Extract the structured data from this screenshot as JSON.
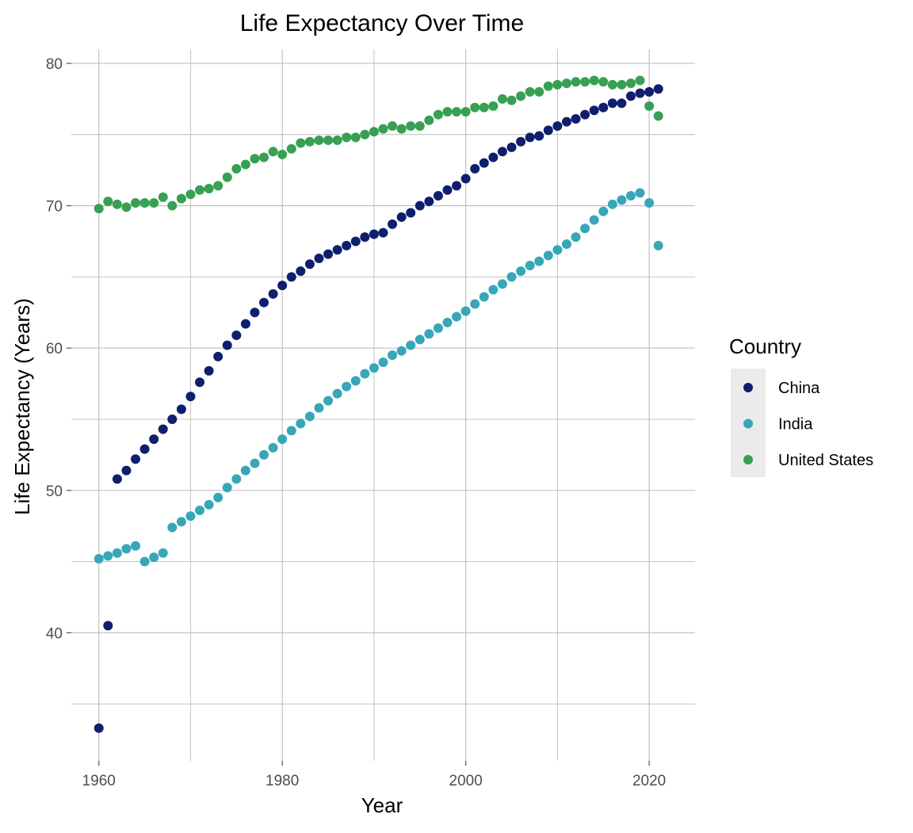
{
  "chart_data": {
    "type": "scatter",
    "title": "Life Expectancy Over Time",
    "xlabel": "Year",
    "ylabel": "Life Expectancy (Years)",
    "xlim": [
      1957,
      2025
    ],
    "ylim": [
      31,
      81
    ],
    "x_ticks": [
      1960,
      1980,
      2000,
      2020
    ],
    "x_minor_ticks": [
      1970,
      1990,
      2010
    ],
    "y_ticks": [
      40,
      50,
      60,
      70,
      80
    ],
    "y_minor_ticks": [
      35,
      45,
      55,
      65,
      75
    ],
    "grid": true,
    "legend": {
      "title": "Country",
      "placement": "right"
    },
    "years": [
      1960,
      1961,
      1962,
      1963,
      1964,
      1965,
      1966,
      1967,
      1968,
      1969,
      1970,
      1971,
      1972,
      1973,
      1974,
      1975,
      1976,
      1977,
      1978,
      1979,
      1980,
      1981,
      1982,
      1983,
      1984,
      1985,
      1986,
      1987,
      1988,
      1989,
      1990,
      1991,
      1992,
      1993,
      1994,
      1995,
      1996,
      1997,
      1998,
      1999,
      2000,
      2001,
      2002,
      2003,
      2004,
      2005,
      2006,
      2007,
      2008,
      2009,
      2010,
      2011,
      2012,
      2013,
      2014,
      2015,
      2016,
      2017,
      2018,
      2019,
      2020,
      2021
    ],
    "series": [
      {
        "name": "China",
        "color": "#0f1f6e",
        "values": [
          33.3,
          40.5,
          50.8,
          51.4,
          52.2,
          52.9,
          53.6,
          54.3,
          55.0,
          55.7,
          56.6,
          57.6,
          58.4,
          59.4,
          60.2,
          60.9,
          61.7,
          62.5,
          63.2,
          63.8,
          64.4,
          65.0,
          65.4,
          65.9,
          66.3,
          66.6,
          66.9,
          67.2,
          67.5,
          67.8,
          68.0,
          68.1,
          68.7,
          69.2,
          69.5,
          70.0,
          70.3,
          70.7,
          71.1,
          71.4,
          71.9,
          72.6,
          73.0,
          73.4,
          73.8,
          74.1,
          74.5,
          74.8,
          74.9,
          75.3,
          75.6,
          75.9,
          76.1,
          76.4,
          76.7,
          76.9,
          77.2,
          77.2,
          77.7,
          77.9,
          78.0,
          78.2
        ]
      },
      {
        "name": "India",
        "color": "#36a7b8",
        "values": [
          45.2,
          45.4,
          45.6,
          45.9,
          46.1,
          45.0,
          45.3,
          45.6,
          47.4,
          47.8,
          48.2,
          48.6,
          49.0,
          49.5,
          50.2,
          50.8,
          51.4,
          51.9,
          52.5,
          53.0,
          53.6,
          54.2,
          54.7,
          55.2,
          55.8,
          56.3,
          56.8,
          57.3,
          57.7,
          58.2,
          58.6,
          59.0,
          59.5,
          59.8,
          60.2,
          60.6,
          61.0,
          61.4,
          61.8,
          62.2,
          62.6,
          63.1,
          63.6,
          64.1,
          64.5,
          65.0,
          65.4,
          65.8,
          66.1,
          66.5,
          66.9,
          67.3,
          67.8,
          68.4,
          69.0,
          69.6,
          70.1,
          70.4,
          70.7,
          70.9,
          70.2,
          67.2
        ]
      },
      {
        "name": "United States",
        "color": "#37a052",
        "values": [
          69.8,
          70.3,
          70.1,
          69.9,
          70.2,
          70.2,
          70.2,
          70.6,
          70.0,
          70.5,
          70.8,
          71.1,
          71.2,
          71.4,
          72.0,
          72.6,
          72.9,
          73.3,
          73.4,
          73.8,
          73.6,
          74.0,
          74.4,
          74.5,
          74.6,
          74.6,
          74.6,
          74.8,
          74.8,
          75.0,
          75.2,
          75.4,
          75.6,
          75.4,
          75.6,
          75.6,
          76.0,
          76.4,
          76.6,
          76.6,
          76.6,
          76.9,
          76.9,
          77.0,
          77.5,
          77.4,
          77.7,
          78.0,
          78.0,
          78.4,
          78.5,
          78.6,
          78.7,
          78.7,
          78.8,
          78.7,
          78.5,
          78.5,
          78.6,
          78.8,
          77.0,
          76.3
        ]
      }
    ]
  }
}
